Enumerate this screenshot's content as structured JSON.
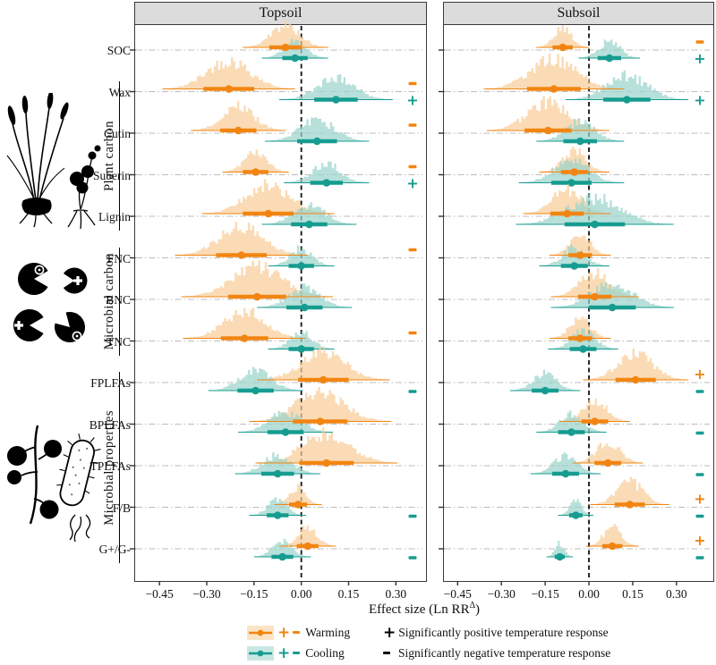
{
  "chart_data": {
    "type": "ridgeline_forest",
    "panels": [
      "Topsoil",
      "Subsoil"
    ],
    "x_ticks": [
      -0.45,
      -0.3,
      -0.15,
      0.0,
      0.15,
      0.3
    ],
    "x_tick_labels": [
      "−0.45",
      "−0.30",
      "−0.15",
      "0.00",
      "0.15",
      "0.30"
    ],
    "xlabel": {
      "prefix": "Effect size (Ln RR",
      "sup": "Δ",
      "suffix": ")"
    },
    "series_colors": {
      "warming": "#F28511",
      "cooling": "#169C90"
    },
    "series_fills": {
      "warming": "#F8CD98",
      "cooling": "#9BD4CC"
    },
    "groups": [
      {
        "label": "Plant carbon",
        "from": 1,
        "to": 4
      },
      {
        "label": "Microbial carbon",
        "from": 5,
        "to": 7
      },
      {
        "label": "Microbial properties",
        "from": 8,
        "to": 12
      }
    ],
    "rows": [
      {
        "label": "SOC",
        "topsoil": {
          "warming": {
            "mean": -0.05,
            "sd": 0.045,
            "sig": ""
          },
          "cooling": {
            "mean": -0.02,
            "sd": 0.035,
            "sig": ""
          }
        },
        "subsoil": {
          "warming": {
            "mean": -0.09,
            "sd": 0.03,
            "sig": "-"
          },
          "cooling": {
            "mean": 0.07,
            "sd": 0.035,
            "sig": "+"
          }
        }
      },
      {
        "label": "Wax",
        "topsoil": {
          "warming": {
            "mean": -0.23,
            "sd": 0.07,
            "sig": "-"
          },
          "cooling": {
            "mean": 0.11,
            "sd": 0.06,
            "sig": "+"
          }
        },
        "subsoil": {
          "warming": {
            "mean": -0.12,
            "sd": 0.08,
            "sig": ""
          },
          "cooling": {
            "mean": 0.13,
            "sd": 0.07,
            "sig": "+"
          }
        }
      },
      {
        "label": "Cutin",
        "topsoil": {
          "warming": {
            "mean": -0.2,
            "sd": 0.05,
            "sig": "-"
          },
          "cooling": {
            "mean": 0.05,
            "sd": 0.055,
            "sig": ""
          }
        },
        "subsoil": {
          "warming": {
            "mean": -0.14,
            "sd": 0.07,
            "sig": ""
          },
          "cooling": {
            "mean": -0.03,
            "sd": 0.05,
            "sig": ""
          }
        }
      },
      {
        "label": "Suberin",
        "topsoil": {
          "warming": {
            "mean": -0.145,
            "sd": 0.035,
            "sig": "-"
          },
          "cooling": {
            "mean": 0.08,
            "sd": 0.045,
            "sig": "+"
          }
        },
        "subsoil": {
          "warming": {
            "mean": -0.05,
            "sd": 0.04,
            "sig": ""
          },
          "cooling": {
            "mean": -0.06,
            "sd": 0.06,
            "sig": ""
          }
        }
      },
      {
        "label": "Lignin",
        "topsoil": {
          "warming": {
            "mean": -0.105,
            "sd": 0.07,
            "sig": ""
          },
          "cooling": {
            "mean": 0.025,
            "sd": 0.05,
            "sig": ""
          }
        },
        "subsoil": {
          "warming": {
            "mean": -0.075,
            "sd": 0.05,
            "sig": ""
          },
          "cooling": {
            "mean": 0.02,
            "sd": 0.09,
            "sig": ""
          }
        }
      },
      {
        "label": "FNC",
        "topsoil": {
          "warming": {
            "mean": -0.19,
            "sd": 0.07,
            "sig": "-"
          },
          "cooling": {
            "mean": 0.0,
            "sd": 0.035,
            "sig": ""
          }
        },
        "subsoil": {
          "warming": {
            "mean": -0.03,
            "sd": 0.035,
            "sig": ""
          },
          "cooling": {
            "mean": -0.05,
            "sd": 0.04,
            "sig": ""
          }
        }
      },
      {
        "label": "BNC",
        "topsoil": {
          "warming": {
            "mean": -0.14,
            "sd": 0.08,
            "sig": ""
          },
          "cooling": {
            "mean": 0.01,
            "sd": 0.05,
            "sig": ""
          }
        },
        "subsoil": {
          "warming": {
            "mean": 0.02,
            "sd": 0.05,
            "sig": ""
          },
          "cooling": {
            "mean": 0.08,
            "sd": 0.07,
            "sig": ""
          }
        }
      },
      {
        "label": "TNC",
        "topsoil": {
          "warming": {
            "mean": -0.18,
            "sd": 0.065,
            "sig": "-"
          },
          "cooling": {
            "mean": 0.0,
            "sd": 0.035,
            "sig": ""
          }
        },
        "subsoil": {
          "warming": {
            "mean": -0.03,
            "sd": 0.035,
            "sig": ""
          },
          "cooling": {
            "mean": -0.02,
            "sd": 0.04,
            "sig": ""
          }
        }
      },
      {
        "label": "FPLFAs",
        "topsoil": {
          "warming": {
            "mean": 0.07,
            "sd": 0.07,
            "sig": ""
          },
          "cooling": {
            "mean": -0.145,
            "sd": 0.05,
            "sig": "-"
          }
        },
        "subsoil": {
          "warming": {
            "mean": 0.16,
            "sd": 0.06,
            "sig": "+"
          },
          "cooling": {
            "mean": -0.15,
            "sd": 0.04,
            "sig": "-"
          }
        }
      },
      {
        "label": "BPLFAs",
        "topsoil": {
          "warming": {
            "mean": 0.06,
            "sd": 0.075,
            "sig": ""
          },
          "cooling": {
            "mean": -0.05,
            "sd": 0.05,
            "sig": ""
          }
        },
        "subsoil": {
          "warming": {
            "mean": 0.02,
            "sd": 0.04,
            "sig": ""
          },
          "cooling": {
            "mean": -0.06,
            "sd": 0.04,
            "sig": "-"
          }
        }
      },
      {
        "label": "TPLFAs",
        "topsoil": {
          "warming": {
            "mean": 0.08,
            "sd": 0.075,
            "sig": ""
          },
          "cooling": {
            "mean": -0.075,
            "sd": 0.045,
            "sig": ""
          }
        },
        "subsoil": {
          "warming": {
            "mean": 0.065,
            "sd": 0.04,
            "sig": ""
          },
          "cooling": {
            "mean": -0.08,
            "sd": 0.04,
            "sig": "-"
          }
        }
      },
      {
        "label": "F/B",
        "topsoil": {
          "warming": {
            "mean": -0.01,
            "sd": 0.025,
            "sig": ""
          },
          "cooling": {
            "mean": -0.075,
            "sd": 0.03,
            "sig": "-"
          }
        },
        "subsoil": {
          "warming": {
            "mean": 0.14,
            "sd": 0.045,
            "sig": "+"
          },
          "cooling": {
            "mean": -0.045,
            "sd": 0.02,
            "sig": "-"
          }
        }
      },
      {
        "label": "G+/G-",
        "topsoil": {
          "warming": {
            "mean": 0.02,
            "sd": 0.03,
            "sig": ""
          },
          "cooling": {
            "mean": -0.06,
            "sd": 0.03,
            "sig": "-"
          }
        },
        "subsoil": {
          "warming": {
            "mean": 0.08,
            "sd": 0.03,
            "sig": "+"
          },
          "cooling": {
            "mean": -0.1,
            "sd": 0.015,
            "sig": "-"
          }
        }
      }
    ]
  },
  "legend": {
    "plus_symbol": "+",
    "warming_label": "Warming",
    "cooling_label": "Cooling",
    "positive_text": "Significantly positive temperature response",
    "negative_text": "Significantly negative temperature response"
  }
}
